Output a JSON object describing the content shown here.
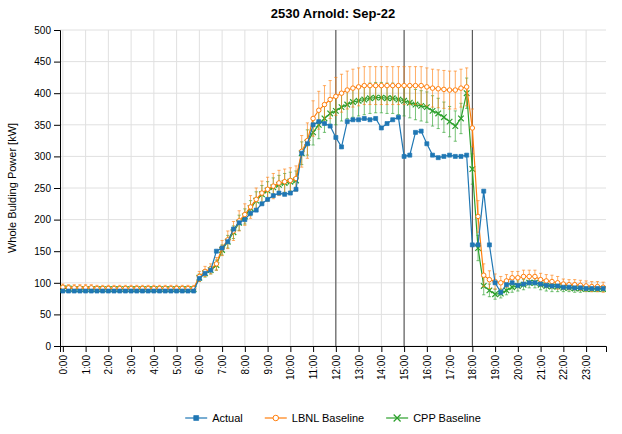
{
  "chart_data": {
    "type": "line",
    "title": "2530 Arnold: Sep-22",
    "ylabel": "Whole Bulding Power [kW]",
    "categories": [
      "0:00",
      null,
      null,
      null,
      "1:00",
      null,
      null,
      null,
      "2:00",
      null,
      null,
      null,
      "3:00",
      null,
      null,
      null,
      "4:00",
      null,
      null,
      null,
      "5:00",
      null,
      null,
      null,
      "6:00",
      null,
      null,
      null,
      "7:00",
      null,
      null,
      null,
      "8:00",
      null,
      null,
      null,
      "9:00",
      null,
      null,
      null,
      "10:00",
      null,
      null,
      null,
      "11:00",
      null,
      null,
      null,
      "12:00",
      null,
      null,
      null,
      "13:00",
      null,
      null,
      null,
      "14:00",
      null,
      null,
      null,
      "15:00",
      null,
      null,
      null,
      "16:00",
      null,
      null,
      null,
      "17:00",
      null,
      null,
      null,
      "18:00",
      null,
      null,
      null,
      "19:00",
      null,
      null,
      null,
      "20:00",
      null,
      null,
      null,
      "21:00",
      null,
      null,
      null,
      "22:00",
      null,
      null,
      null,
      "23:00",
      null,
      null,
      null
    ],
    "ylim": [
      0,
      500
    ],
    "yticks": [
      0,
      50,
      100,
      150,
      200,
      250,
      300,
      350,
      400,
      450,
      500
    ],
    "grid": true,
    "legend": "bottom",
    "vlines": [
      48,
      60,
      72
    ],
    "series": [
      {
        "name": "Actual",
        "marker": "square",
        "values": [
          87,
          87,
          87,
          87,
          87,
          87,
          87,
          87,
          87,
          87,
          87,
          87,
          87,
          87,
          87,
          87,
          87,
          87,
          87,
          87,
          87,
          87,
          87,
          87,
          107,
          115,
          120,
          150,
          155,
          165,
          185,
          195,
          200,
          210,
          215,
          225,
          232,
          238,
          242,
          240,
          242,
          248,
          305,
          320,
          350,
          355,
          352,
          348,
          330,
          315,
          355,
          358,
          358,
          360,
          358,
          360,
          345,
          352,
          358,
          362,
          300,
          302,
          338,
          340,
          320,
          302,
          298,
          300,
          302,
          300,
          300,
          302,
          160,
          160,
          245,
          160,
          100,
          85,
          97,
          100,
          96,
          98,
          100,
          100,
          98,
          96,
          95,
          95,
          93,
          93,
          92,
          92,
          91,
          91,
          91,
          91
        ]
      },
      {
        "name": "LBNL Baseline",
        "marker": "circle",
        "values": [
          93,
          92,
          92,
          92,
          92,
          92,
          91,
          91,
          91,
          91,
          91,
          91,
          91,
          91,
          91,
          91,
          91,
          91,
          91,
          91,
          91,
          91,
          91,
          91,
          110,
          118,
          122,
          130,
          155,
          168,
          182,
          198,
          208,
          220,
          232,
          242,
          248,
          253,
          258,
          260,
          262,
          265,
          308,
          325,
          360,
          373,
          382,
          390,
          395,
          400,
          405,
          408,
          410,
          412,
          412,
          412,
          412,
          412,
          412,
          412,
          412,
          412,
          412,
          412,
          410,
          408,
          407,
          406,
          405,
          405,
          408,
          410,
          345,
          205,
          112,
          105,
          102,
          100,
          103,
          108,
          108,
          110,
          110,
          110,
          105,
          103,
          102,
          100,
          98,
          97,
          97,
          96,
          95,
          94,
          94,
          93
        ],
        "errors": [
          5,
          5,
          5,
          5,
          5,
          5,
          5,
          5,
          5,
          5,
          5,
          5,
          5,
          5,
          5,
          5,
          5,
          5,
          5,
          5,
          5,
          5,
          5,
          5,
          8,
          8,
          8,
          10,
          12,
          14,
          15,
          16,
          17,
          18,
          18,
          19,
          19,
          20,
          20,
          20,
          20,
          20,
          25,
          28,
          28,
          30,
          30,
          30,
          30,
          30,
          30,
          30,
          30,
          30,
          30,
          30,
          30,
          30,
          30,
          30,
          30,
          30,
          30,
          30,
          30,
          30,
          30,
          30,
          30,
          30,
          30,
          30,
          30,
          25,
          18,
          14,
          12,
          10,
          10,
          10,
          10,
          10,
          10,
          10,
          10,
          10,
          10,
          10,
          8,
          8,
          8,
          8,
          8,
          8,
          8,
          8
        ]
      },
      {
        "name": "CPP Baseline",
        "marker": "x",
        "values": [
          91,
          91,
          90,
          90,
          90,
          90,
          90,
          90,
          90,
          90,
          90,
          90,
          90,
          90,
          90,
          90,
          90,
          90,
          90,
          90,
          90,
          90,
          90,
          90,
          108,
          115,
          120,
          128,
          152,
          165,
          180,
          195,
          205,
          218,
          230,
          240,
          246,
          251,
          255,
          258,
          260,
          262,
          305,
          322,
          338,
          350,
          360,
          368,
          372,
          378,
          382,
          386,
          388,
          390,
          392,
          393,
          393,
          392,
          392,
          390,
          388,
          385,
          382,
          380,
          378,
          372,
          368,
          362,
          355,
          348,
          360,
          400,
          280,
          155,
          95,
          88,
          82,
          83,
          88,
          93,
          95,
          97,
          100,
          100,
          97,
          95,
          94,
          94,
          92,
          92,
          91,
          91,
          90,
          90,
          90,
          90
        ],
        "errors": [
          4,
          4,
          4,
          4,
          4,
          4,
          4,
          4,
          4,
          4,
          4,
          4,
          4,
          4,
          4,
          4,
          4,
          4,
          4,
          4,
          4,
          4,
          4,
          4,
          6,
          6,
          6,
          8,
          8,
          10,
          10,
          12,
          12,
          12,
          14,
          14,
          14,
          15,
          15,
          15,
          15,
          15,
          18,
          20,
          20,
          22,
          22,
          22,
          22,
          22,
          22,
          24,
          24,
          24,
          24,
          24,
          24,
          24,
          24,
          24,
          24,
          24,
          24,
          24,
          24,
          24,
          24,
          24,
          24,
          24,
          24,
          24,
          24,
          20,
          14,
          10,
          8,
          7,
          7,
          8,
          8,
          8,
          8,
          8,
          8,
          8,
          8,
          8,
          6,
          6,
          6,
          6,
          4,
          4,
          4,
          4
        ]
      }
    ]
  }
}
